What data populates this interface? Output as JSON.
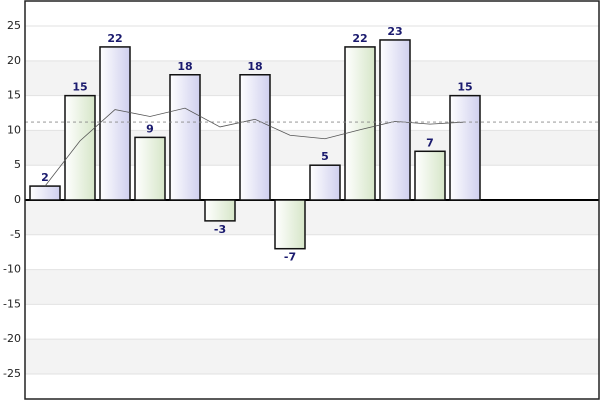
{
  "chart_data": {
    "type": "bar",
    "categories": [
      null,
      null,
      null,
      null,
      null,
      null,
      null,
      null,
      null,
      null,
      null,
      null,
      null
    ],
    "values": [
      2,
      15,
      22,
      9,
      18,
      -3,
      18,
      -7,
      5,
      22,
      23,
      7,
      15
    ],
    "colors": [
      "#cfcfee",
      "#d6e6c8",
      "#cfcfee",
      "#d6e6c8",
      "#cfcfee",
      "#d6e6c8",
      "#cfcfee",
      "#d6e6c8",
      "#cfcfee",
      "#d6e6c8",
      "#cfcfee",
      "#d6e6c8",
      "#cfcfee"
    ],
    "line_values": [
      2,
      8.5,
      13,
      12,
      13.2,
      10.5,
      11.6,
      9.3,
      8.8,
      10.1,
      11.3,
      10.9,
      11.2
    ],
    "average_line": 11.2,
    "ylim": [
      -28.6,
      28.6
    ],
    "yticks": [
      -25,
      -20,
      -15,
      -10,
      -5,
      0,
      5,
      10,
      15,
      20,
      25
    ],
    "grid": true
  }
}
